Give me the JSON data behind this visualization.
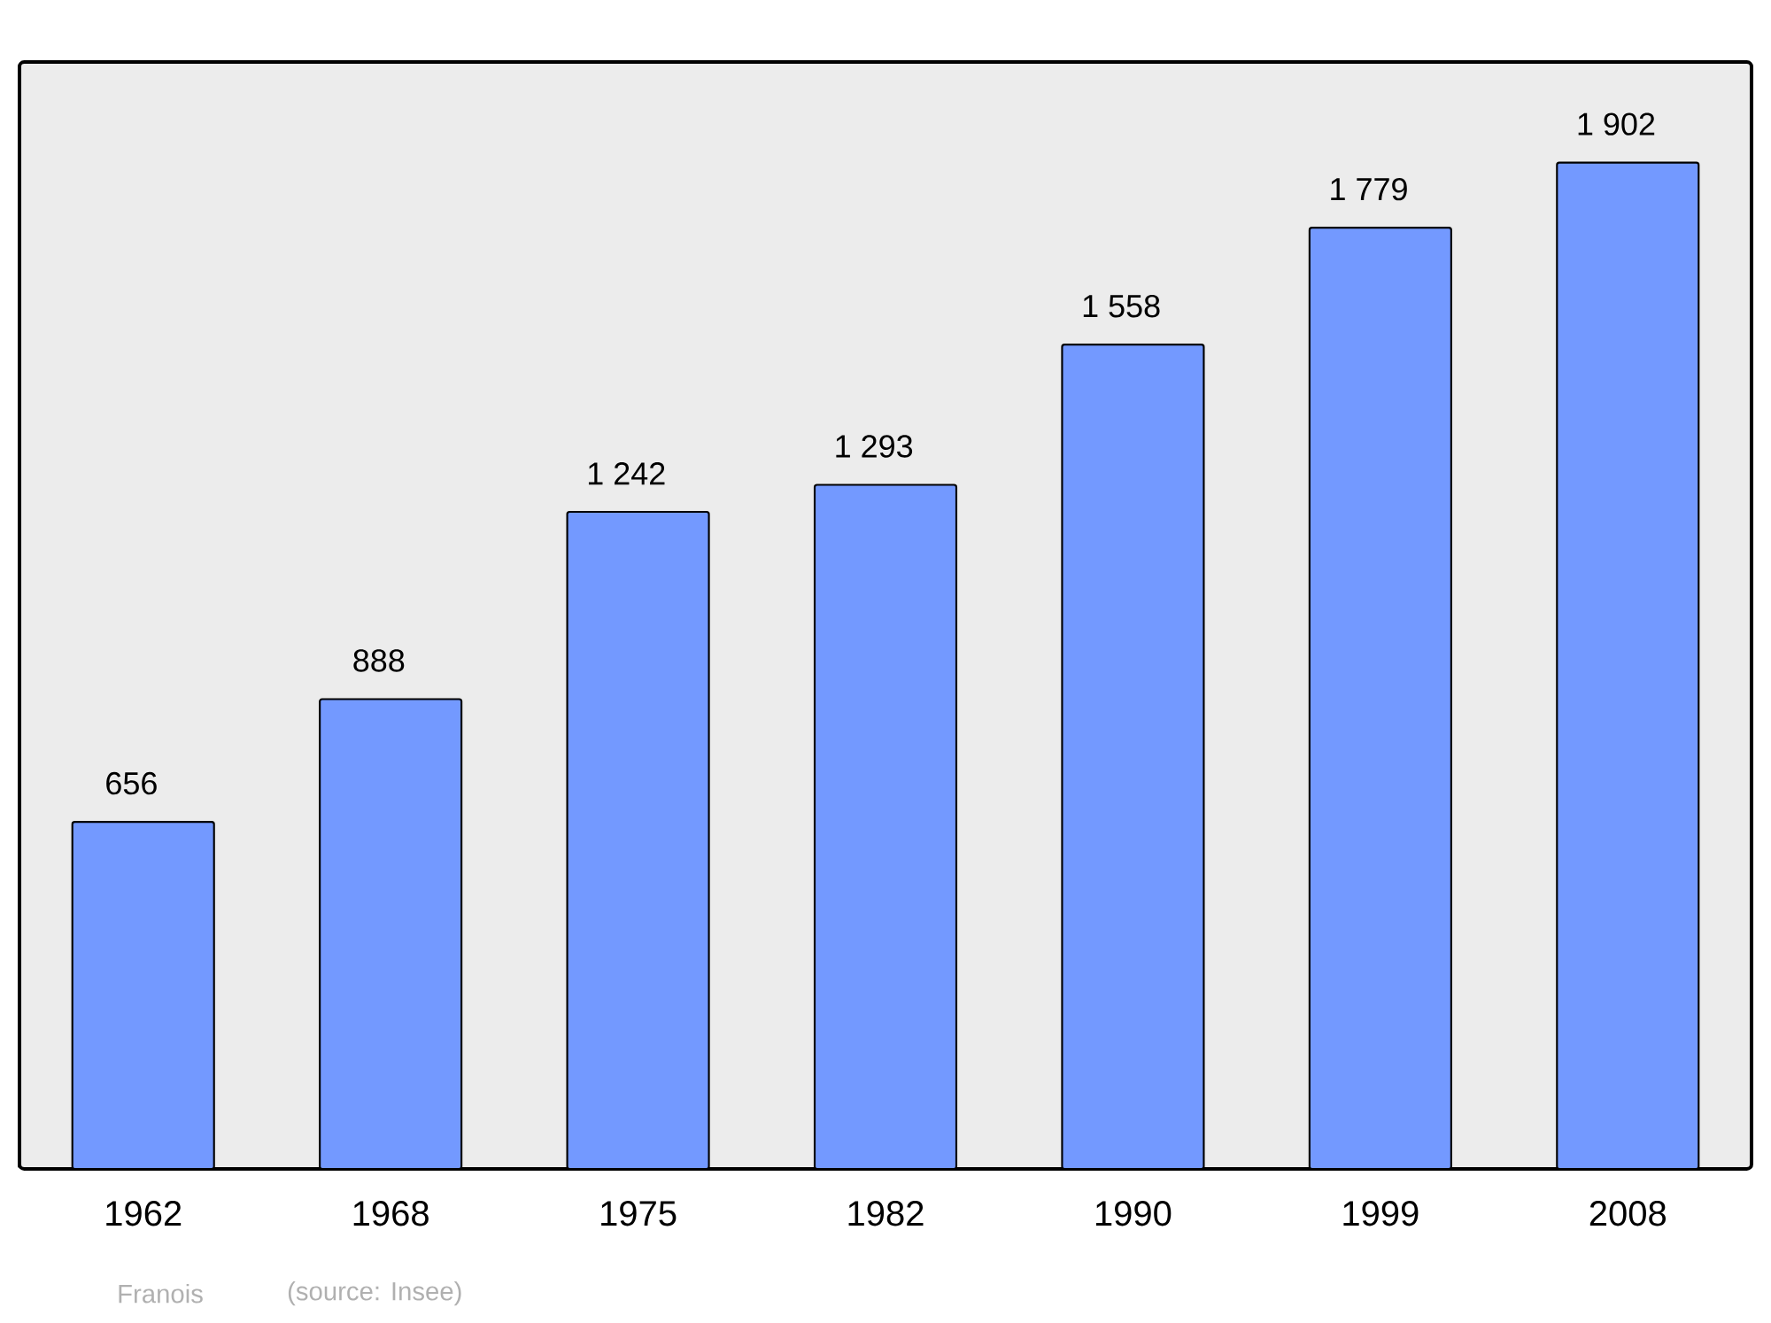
{
  "chart_data": {
    "type": "bar",
    "categories": [
      "1962",
      "1968",
      "1975",
      "1982",
      "1990",
      "1999",
      "2008"
    ],
    "values": [
      656,
      888,
      1242,
      1293,
      1558,
      1779,
      1902
    ],
    "value_labels": [
      "656",
      "888",
      "1 242",
      "1 293",
      "1 558",
      "1 779",
      "1 902"
    ],
    "color": "#7399ff",
    "annotations": [
      "Franois",
      "(source: Insee)"
    ]
  }
}
